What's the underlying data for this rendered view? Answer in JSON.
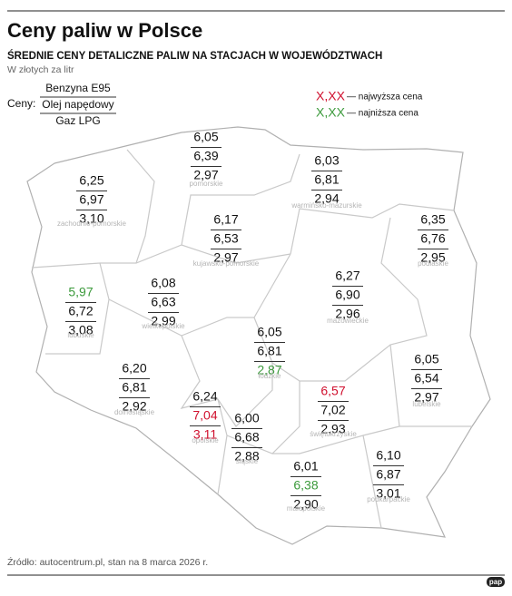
{
  "header": {
    "title": "Ceny paliw w Polsce",
    "subtitle": "ŚREDNIE CENY DETALICZNE PALIW NA STACJACH W WOJEWÓDZTWACH",
    "unit": "W złotych za litr"
  },
  "legend": {
    "label": "Ceny:",
    "fuels": [
      "Benzyna E95",
      "Olej napędowy",
      "Gaz LPG"
    ],
    "highest": {
      "sample": "X,XX",
      "text": "— najwyższa cena",
      "color": "#d0102e"
    },
    "lowest": {
      "sample": "X,XX",
      "text": "— najniższa cena",
      "color": "#3c9a3c"
    }
  },
  "regions": [
    {
      "name": "pomorskie",
      "prices": [
        "6,05",
        "6,39",
        "2,97"
      ]
    },
    {
      "name": "warmińsko-mazurskie",
      "prices": [
        "6,03",
        "6,81",
        "2,94"
      ]
    },
    {
      "name": "zachodnio-pomorskie",
      "prices": [
        "6,25",
        "6,97",
        "3,10"
      ]
    },
    {
      "name": "kujawsko-pomorskie",
      "prices": [
        "6,17",
        "6,53",
        "2,97"
      ]
    },
    {
      "name": "podlaskie",
      "prices": [
        "6,35",
        "6,76",
        "2,95"
      ]
    },
    {
      "name": "lubuskie",
      "prices": [
        "5,97",
        "6,72",
        "3,08"
      ]
    },
    {
      "name": "wielkopolskie",
      "prices": [
        "6,08",
        "6,63",
        "2,99"
      ]
    },
    {
      "name": "mazowieckie",
      "prices": [
        "6,27",
        "6,90",
        "2,96"
      ]
    },
    {
      "name": "łódzkie",
      "prices": [
        "6,05",
        "6,81",
        "2,87"
      ]
    },
    {
      "name": "dolnośląskie",
      "prices": [
        "6,20",
        "6,81",
        "2,92"
      ]
    },
    {
      "name": "lubelskie",
      "prices": [
        "6,05",
        "6,54",
        "2,97"
      ]
    },
    {
      "name": "opolskie",
      "prices": [
        "6,24",
        "7,04",
        "3,11"
      ]
    },
    {
      "name": "świętokrzyskie",
      "prices": [
        "6,57",
        "7,02",
        "2,93"
      ]
    },
    {
      "name": "śląskie",
      "prices": [
        "6,00",
        "6,68",
        "2,88"
      ]
    },
    {
      "name": "małopolskie",
      "prices": [
        "6,01",
        "6,38",
        "2,90"
      ]
    },
    {
      "name": "podkarpackie",
      "prices": [
        "6,10",
        "6,87",
        "3,01"
      ]
    }
  ],
  "source": "Źródło: autocentrum.pl, stan na 8 marca 2026 r.",
  "logo": "pap"
}
